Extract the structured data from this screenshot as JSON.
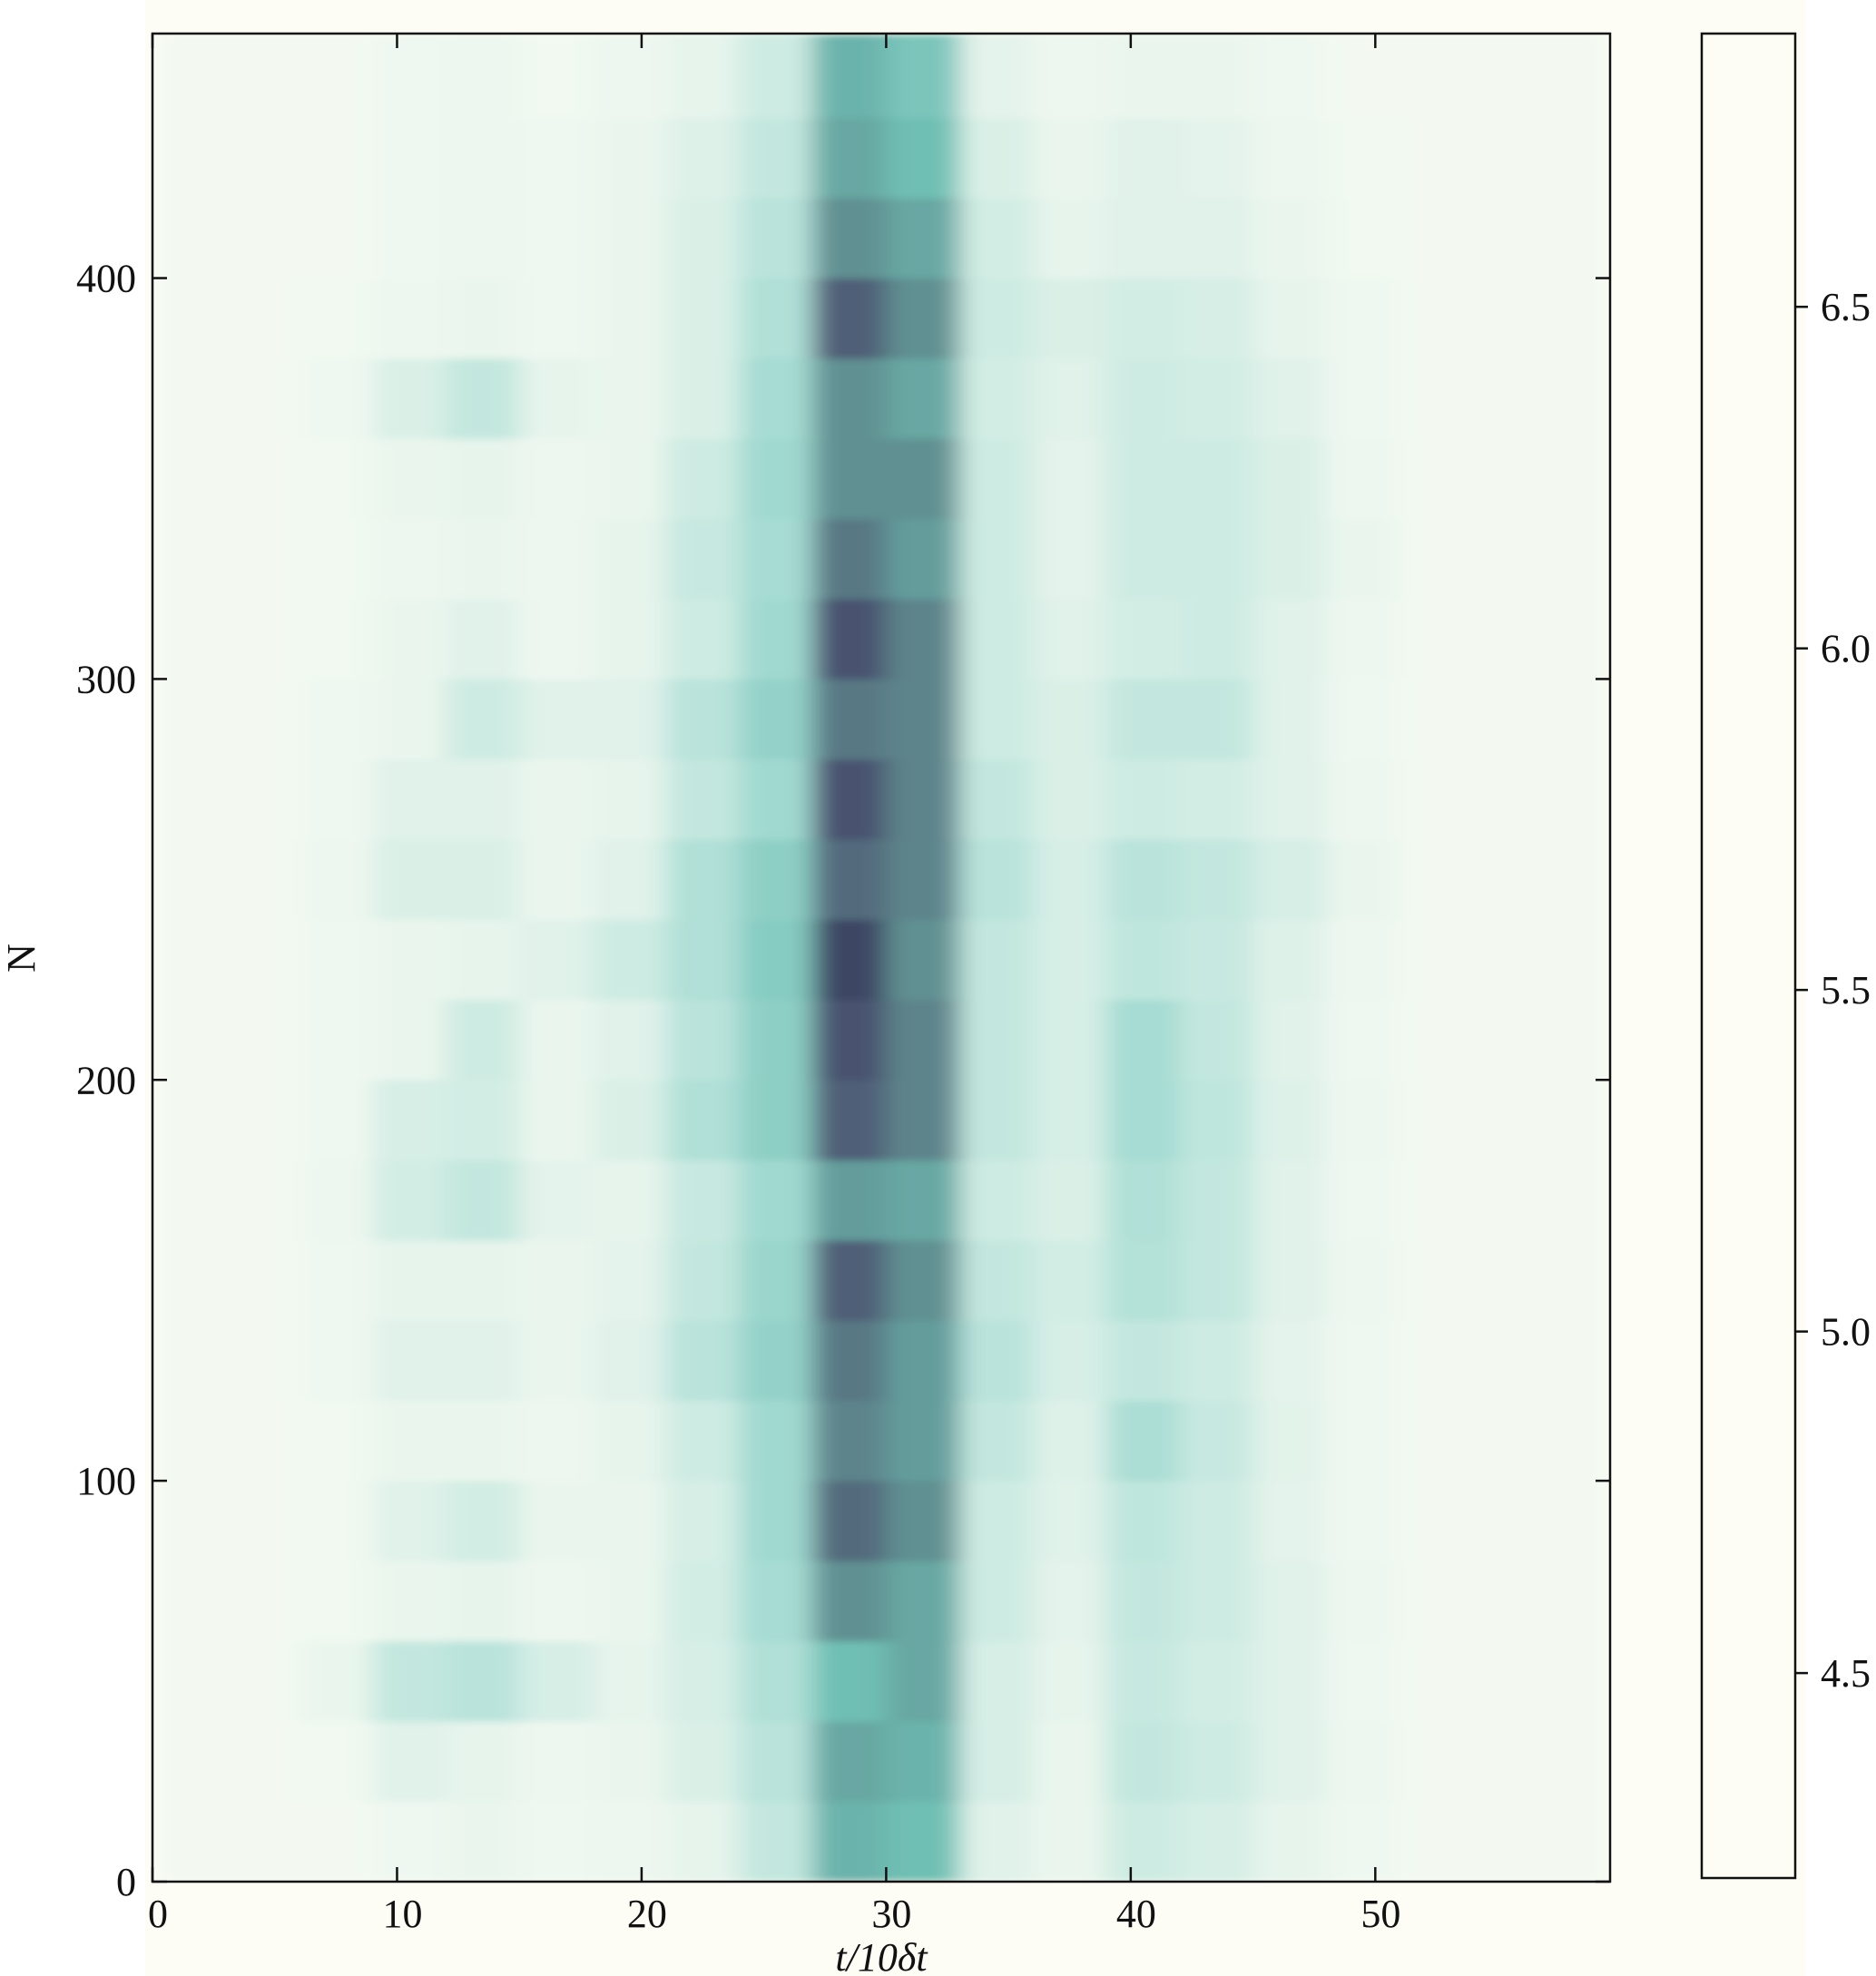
{
  "chart_data": {
    "type": "heatmap",
    "xlabel": "t/10δt",
    "ylabel": "N",
    "xlim": [
      0,
      59.6
    ],
    "ylim": [
      0,
      461
    ],
    "xticks": [
      0,
      10,
      20,
      30,
      40,
      50
    ],
    "yticks": [
      0,
      100,
      200,
      300,
      400
    ],
    "clim": [
      4.2,
      6.9
    ],
    "cticks": [
      {
        "value": 4.5,
        "label": "4.5"
      },
      {
        "value": 5,
        "label": "5.0"
      },
      {
        "value": 5.5,
        "label": "5.5"
      },
      {
        "value": 6,
        "label": "6.0"
      },
      {
        "value": 6.5,
        "label": "6.5"
      }
    ],
    "colormap": [
      "#fdfdf5",
      "#a6dcd3",
      "#6fbfb4",
      "#5f8a8e",
      "#4a5370",
      "#161a3a",
      "#000000"
    ],
    "x_bins": [
      0,
      3,
      6,
      9,
      12,
      15,
      18,
      21,
      24,
      27,
      30,
      33,
      36,
      39,
      42,
      45,
      48,
      51,
      54,
      57,
      59.6
    ],
    "y_bins": [
      0,
      20,
      40,
      60,
      80,
      100,
      120,
      140,
      160,
      180,
      200,
      220,
      240,
      260,
      280,
      300,
      320,
      340,
      360,
      380,
      400,
      420,
      440,
      461
    ],
    "z": [
      [
        4.25,
        4.25,
        4.25,
        4.27,
        4.3,
        4.27,
        4.28,
        4.32,
        4.5,
        5.2,
        5.1,
        4.35,
        4.3,
        4.45,
        4.4,
        4.32,
        4.27,
        4.25,
        4.25,
        4.25
      ],
      [
        4.25,
        4.25,
        4.26,
        4.35,
        4.32,
        4.28,
        4.3,
        4.38,
        4.55,
        5.3,
        5.2,
        4.4,
        4.3,
        4.5,
        4.45,
        4.35,
        4.28,
        4.25,
        4.25,
        4.25
      ],
      [
        4.25,
        4.25,
        4.3,
        4.5,
        4.55,
        4.4,
        4.32,
        4.4,
        4.6,
        5.1,
        5.3,
        4.4,
        4.32,
        4.48,
        4.42,
        4.35,
        4.27,
        4.25,
        4.25,
        4.25
      ],
      [
        4.25,
        4.25,
        4.26,
        4.3,
        4.32,
        4.28,
        4.3,
        4.42,
        4.65,
        5.5,
        5.3,
        4.45,
        4.33,
        4.5,
        4.45,
        4.35,
        4.28,
        4.25,
        4.25,
        4.25
      ],
      [
        4.25,
        4.25,
        4.26,
        4.35,
        4.42,
        4.3,
        4.3,
        4.4,
        4.7,
        5.8,
        5.5,
        4.45,
        4.35,
        4.52,
        4.45,
        4.33,
        4.27,
        4.25,
        4.25,
        4.25
      ],
      [
        4.25,
        4.25,
        4.26,
        4.3,
        4.3,
        4.28,
        4.32,
        4.45,
        4.7,
        5.6,
        5.4,
        4.5,
        4.36,
        4.62,
        4.48,
        4.34,
        4.27,
        4.25,
        4.25,
        4.25
      ],
      [
        4.25,
        4.25,
        4.27,
        4.35,
        4.35,
        4.3,
        4.35,
        4.55,
        4.8,
        5.7,
        5.4,
        4.55,
        4.4,
        4.5,
        4.45,
        4.33,
        4.27,
        4.25,
        4.25,
        4.25
      ],
      [
        4.25,
        4.25,
        4.27,
        4.32,
        4.32,
        4.3,
        4.33,
        4.5,
        4.75,
        5.9,
        5.5,
        4.5,
        4.42,
        4.58,
        4.5,
        4.35,
        4.28,
        4.25,
        4.25,
        4.25
      ],
      [
        4.25,
        4.25,
        4.28,
        4.42,
        4.5,
        4.33,
        4.32,
        4.48,
        4.7,
        5.4,
        5.3,
        4.45,
        4.38,
        4.6,
        4.5,
        4.35,
        4.27,
        4.25,
        4.25,
        4.25
      ],
      [
        4.25,
        4.25,
        4.27,
        4.4,
        4.42,
        4.3,
        4.38,
        4.6,
        4.85,
        5.9,
        5.6,
        4.5,
        4.4,
        4.65,
        4.52,
        4.36,
        4.28,
        4.25,
        4.25,
        4.25
      ],
      [
        4.25,
        4.25,
        4.27,
        4.3,
        4.45,
        4.3,
        4.35,
        4.55,
        4.85,
        6.0,
        5.6,
        4.5,
        4.4,
        4.65,
        4.5,
        4.35,
        4.27,
        4.25,
        4.25,
        4.25
      ],
      [
        4.25,
        4.25,
        4.27,
        4.3,
        4.32,
        4.35,
        4.45,
        4.6,
        4.9,
        6.1,
        5.5,
        4.5,
        4.4,
        4.52,
        4.48,
        4.36,
        4.28,
        4.25,
        4.25,
        4.25
      ],
      [
        4.25,
        4.25,
        4.28,
        4.38,
        4.38,
        4.3,
        4.35,
        4.6,
        4.85,
        5.8,
        5.6,
        4.55,
        4.4,
        4.55,
        4.5,
        4.4,
        4.3,
        4.25,
        4.25,
        4.25
      ],
      [
        4.25,
        4.25,
        4.27,
        4.35,
        4.35,
        4.3,
        4.32,
        4.5,
        4.7,
        6.0,
        5.6,
        4.5,
        4.38,
        4.45,
        4.42,
        4.35,
        4.28,
        4.25,
        4.25,
        4.25
      ],
      [
        4.25,
        4.25,
        4.27,
        4.3,
        4.45,
        4.35,
        4.35,
        4.55,
        4.8,
        5.7,
        5.6,
        4.45,
        4.38,
        4.5,
        4.5,
        4.35,
        4.27,
        4.25,
        4.25,
        4.25
      ],
      [
        4.25,
        4.25,
        4.26,
        4.3,
        4.35,
        4.28,
        4.32,
        4.45,
        4.7,
        6.0,
        5.6,
        4.45,
        4.35,
        4.42,
        4.45,
        4.35,
        4.28,
        4.25,
        4.25,
        4.25
      ],
      [
        4.25,
        4.25,
        4.26,
        4.28,
        4.3,
        4.28,
        4.32,
        4.48,
        4.65,
        5.7,
        5.4,
        4.45,
        4.33,
        4.45,
        4.45,
        4.38,
        4.3,
        4.25,
        4.25,
        4.25
      ],
      [
        4.25,
        4.25,
        4.26,
        4.3,
        4.32,
        4.28,
        4.3,
        4.45,
        4.7,
        5.5,
        5.5,
        4.45,
        4.33,
        4.45,
        4.45,
        4.38,
        4.28,
        4.25,
        4.25,
        4.25
      ],
      [
        4.25,
        4.25,
        4.27,
        4.38,
        4.5,
        4.32,
        4.3,
        4.38,
        4.65,
        5.5,
        5.3,
        4.42,
        4.35,
        4.45,
        4.42,
        4.35,
        4.27,
        4.25,
        4.25,
        4.25
      ],
      [
        4.25,
        4.25,
        4.26,
        4.28,
        4.3,
        4.27,
        4.3,
        4.38,
        4.6,
        5.9,
        5.5,
        4.45,
        4.38,
        4.42,
        4.4,
        4.32,
        4.27,
        4.25,
        4.25,
        4.25
      ],
      [
        4.25,
        4.25,
        4.25,
        4.27,
        4.28,
        4.27,
        4.3,
        4.38,
        4.55,
        5.5,
        5.3,
        4.42,
        4.32,
        4.35,
        4.35,
        4.3,
        4.26,
        4.25,
        4.25,
        4.25
      ],
      [
        4.25,
        4.25,
        4.25,
        4.27,
        4.28,
        4.27,
        4.3,
        4.36,
        4.5,
        5.3,
        5.1,
        4.38,
        4.3,
        4.35,
        4.33,
        4.28,
        4.26,
        4.25,
        4.25,
        4.25
      ],
      [
        4.25,
        4.25,
        4.25,
        4.27,
        4.28,
        4.26,
        4.28,
        4.32,
        4.45,
        5.2,
        5.0,
        4.33,
        4.28,
        4.3,
        4.3,
        4.27,
        4.25,
        4.25,
        4.25,
        4.25
      ]
    ]
  }
}
